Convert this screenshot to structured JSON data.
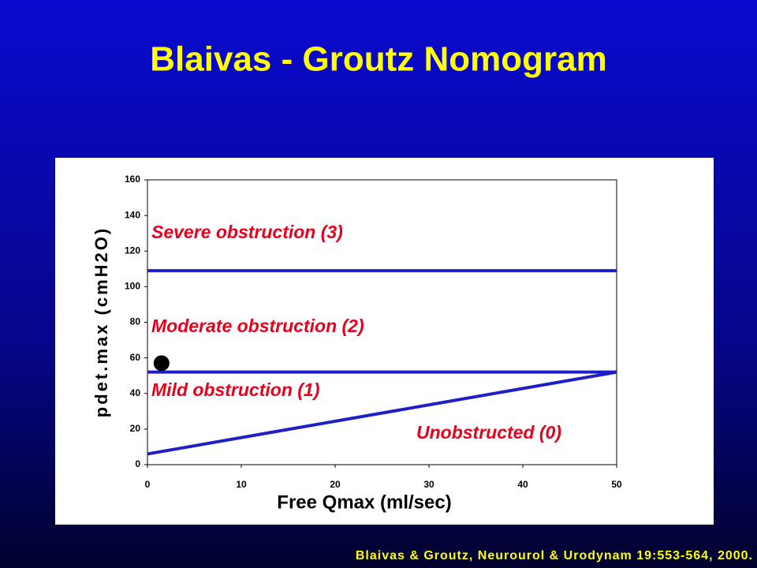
{
  "title": "Blaivas - Groutz Nomogram",
  "citation": "Blaivas & Groutz, Neurourol & Urodynam 19:553-564, 2000.",
  "chart_data": {
    "type": "line",
    "x_label": "Free Qmax (ml/sec)",
    "y_label": "pdet.max (cmH2O)",
    "xlim": [
      0,
      50
    ],
    "xticks": [
      0,
      10,
      20,
      30,
      40,
      50
    ],
    "ylim": [
      0,
      160
    ],
    "yticks": [
      0,
      20,
      40,
      60,
      80,
      100,
      120,
      140,
      160
    ],
    "series": [
      {
        "color": "#1f1fc8",
        "x": [
          0,
          50
        ],
        "values": [
          109,
          109
        ]
      },
      {
        "color": "#1f1fc8",
        "x": [
          0,
          50
        ],
        "values": [
          52,
          52
        ]
      },
      {
        "color": "#1f1fc8",
        "x": [
          0,
          50
        ],
        "values": [
          6,
          52
        ]
      }
    ],
    "points": {
      "color": "#000000",
      "x": [
        1.5
      ],
      "values": [
        57
      ]
    },
    "annotations": [
      "Severe obstruction (3)",
      "Moderate obstruction (2)",
      "Mild obstruction (1)",
      "Unobstructed (0)"
    ],
    "annotation_color": "#e8001c"
  }
}
